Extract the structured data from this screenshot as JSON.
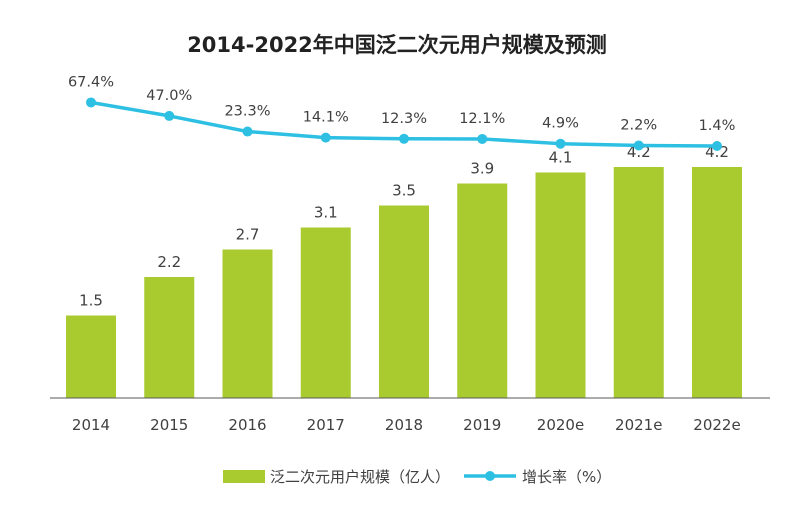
{
  "chart_data": {
    "type": "bar",
    "title": "2014-2022年中国泛二次元用户规模及预测",
    "categories": [
      "2014",
      "2015",
      "2016",
      "2017",
      "2018",
      "2019",
      "2020e",
      "2021e",
      "2022e"
    ],
    "series": [
      {
        "name": "泛二次元用户规模（亿人）",
        "type": "bar",
        "color": "#a9cb2f",
        "values": [
          1.5,
          2.2,
          2.7,
          3.1,
          3.5,
          3.9,
          4.1,
          4.2,
          4.2
        ],
        "labels": [
          "1.5",
          "2.2",
          "2.7",
          "3.1",
          "3.5",
          "3.9",
          "4.1",
          "4.2",
          "4.2"
        ]
      },
      {
        "name": "增长率（%）",
        "type": "line",
        "color": "#2ec0e3",
        "values": [
          67.4,
          47.0,
          23.3,
          14.1,
          12.3,
          12.1,
          4.9,
          2.2,
          1.4
        ],
        "labels": [
          "67.4%",
          "47.0%",
          "23.3%",
          "14.1%",
          "12.3%",
          "12.1%",
          "4.9%",
          "2.2%",
          "1.4%"
        ]
      }
    ],
    "bar_axis_range": [
      0,
      4.8
    ],
    "line_axis_range": [
      -300,
      80
    ],
    "legend_position": "bottom",
    "grid": false
  }
}
